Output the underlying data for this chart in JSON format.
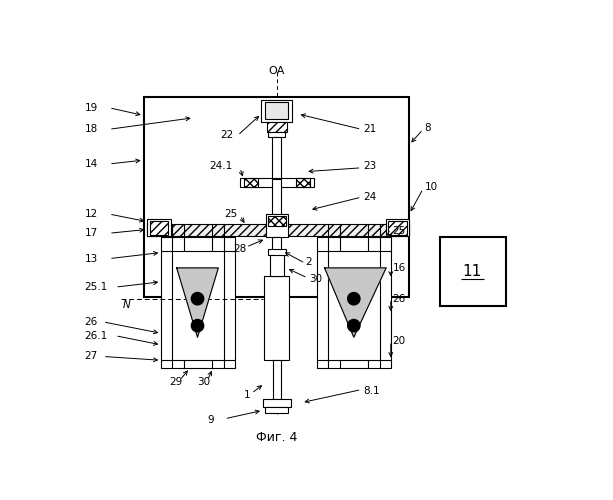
{
  "fig_caption": "Фиг. 4",
  "oa_label": "ОА",
  "bg": "#ffffff",
  "lw": 0.8,
  "fs": 7.5
}
